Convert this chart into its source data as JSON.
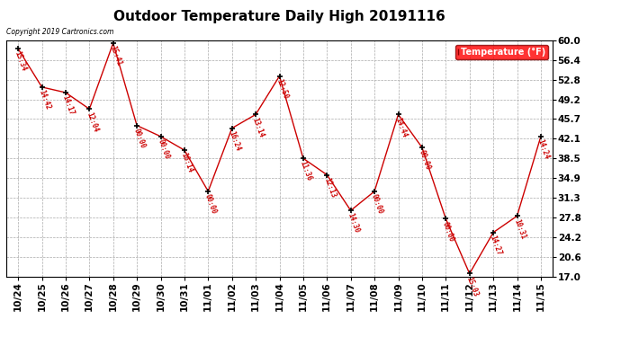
{
  "title": "Outdoor Temperature Daily High 20191116",
  "copyright_text": "Copyright 2019 Cartronics.com",
  "legend_label": "Temperature (°F)",
  "x_labels": [
    "10/24",
    "10/25",
    "10/26",
    "10/27",
    "10/28",
    "10/29",
    "10/30",
    "10/31",
    "11/01",
    "11/02",
    "11/03",
    "11/04",
    "11/05",
    "11/06",
    "11/07",
    "11/08",
    "11/09",
    "11/10",
    "11/11",
    "11/12",
    "11/13",
    "11/14",
    "11/15"
  ],
  "y_values": [
    58.5,
    51.5,
    50.5,
    47.5,
    59.5,
    44.5,
    42.5,
    40.0,
    32.5,
    44.0,
    46.5,
    53.5,
    38.5,
    35.5,
    29.0,
    32.5,
    46.5,
    40.5,
    27.5,
    17.5,
    25.0,
    28.0,
    42.5
  ],
  "point_labels": [
    "15:34",
    "14:42",
    "14:17",
    "12:04",
    "15:41",
    "00:00",
    "00:00",
    "16:14",
    "00:00",
    "16:24",
    "13:14",
    "12:50",
    "11:36",
    "12:13",
    "14:30",
    "00:00",
    "14:44",
    "00:00",
    "00:00",
    "15:03",
    "14:27",
    "10:31",
    "14:24"
  ],
  "ylim": [
    17.0,
    60.0
  ],
  "yticks": [
    17.0,
    20.6,
    24.2,
    27.8,
    31.3,
    34.9,
    38.5,
    42.1,
    45.7,
    49.2,
    52.8,
    56.4,
    60.0
  ],
  "line_color": "#cc0000",
  "marker_color": "#000000",
  "label_color": "#cc0000",
  "bg_color": "#ffffff",
  "grid_color": "#aaaaaa",
  "title_fontsize": 11,
  "tick_fontsize": 7.5
}
